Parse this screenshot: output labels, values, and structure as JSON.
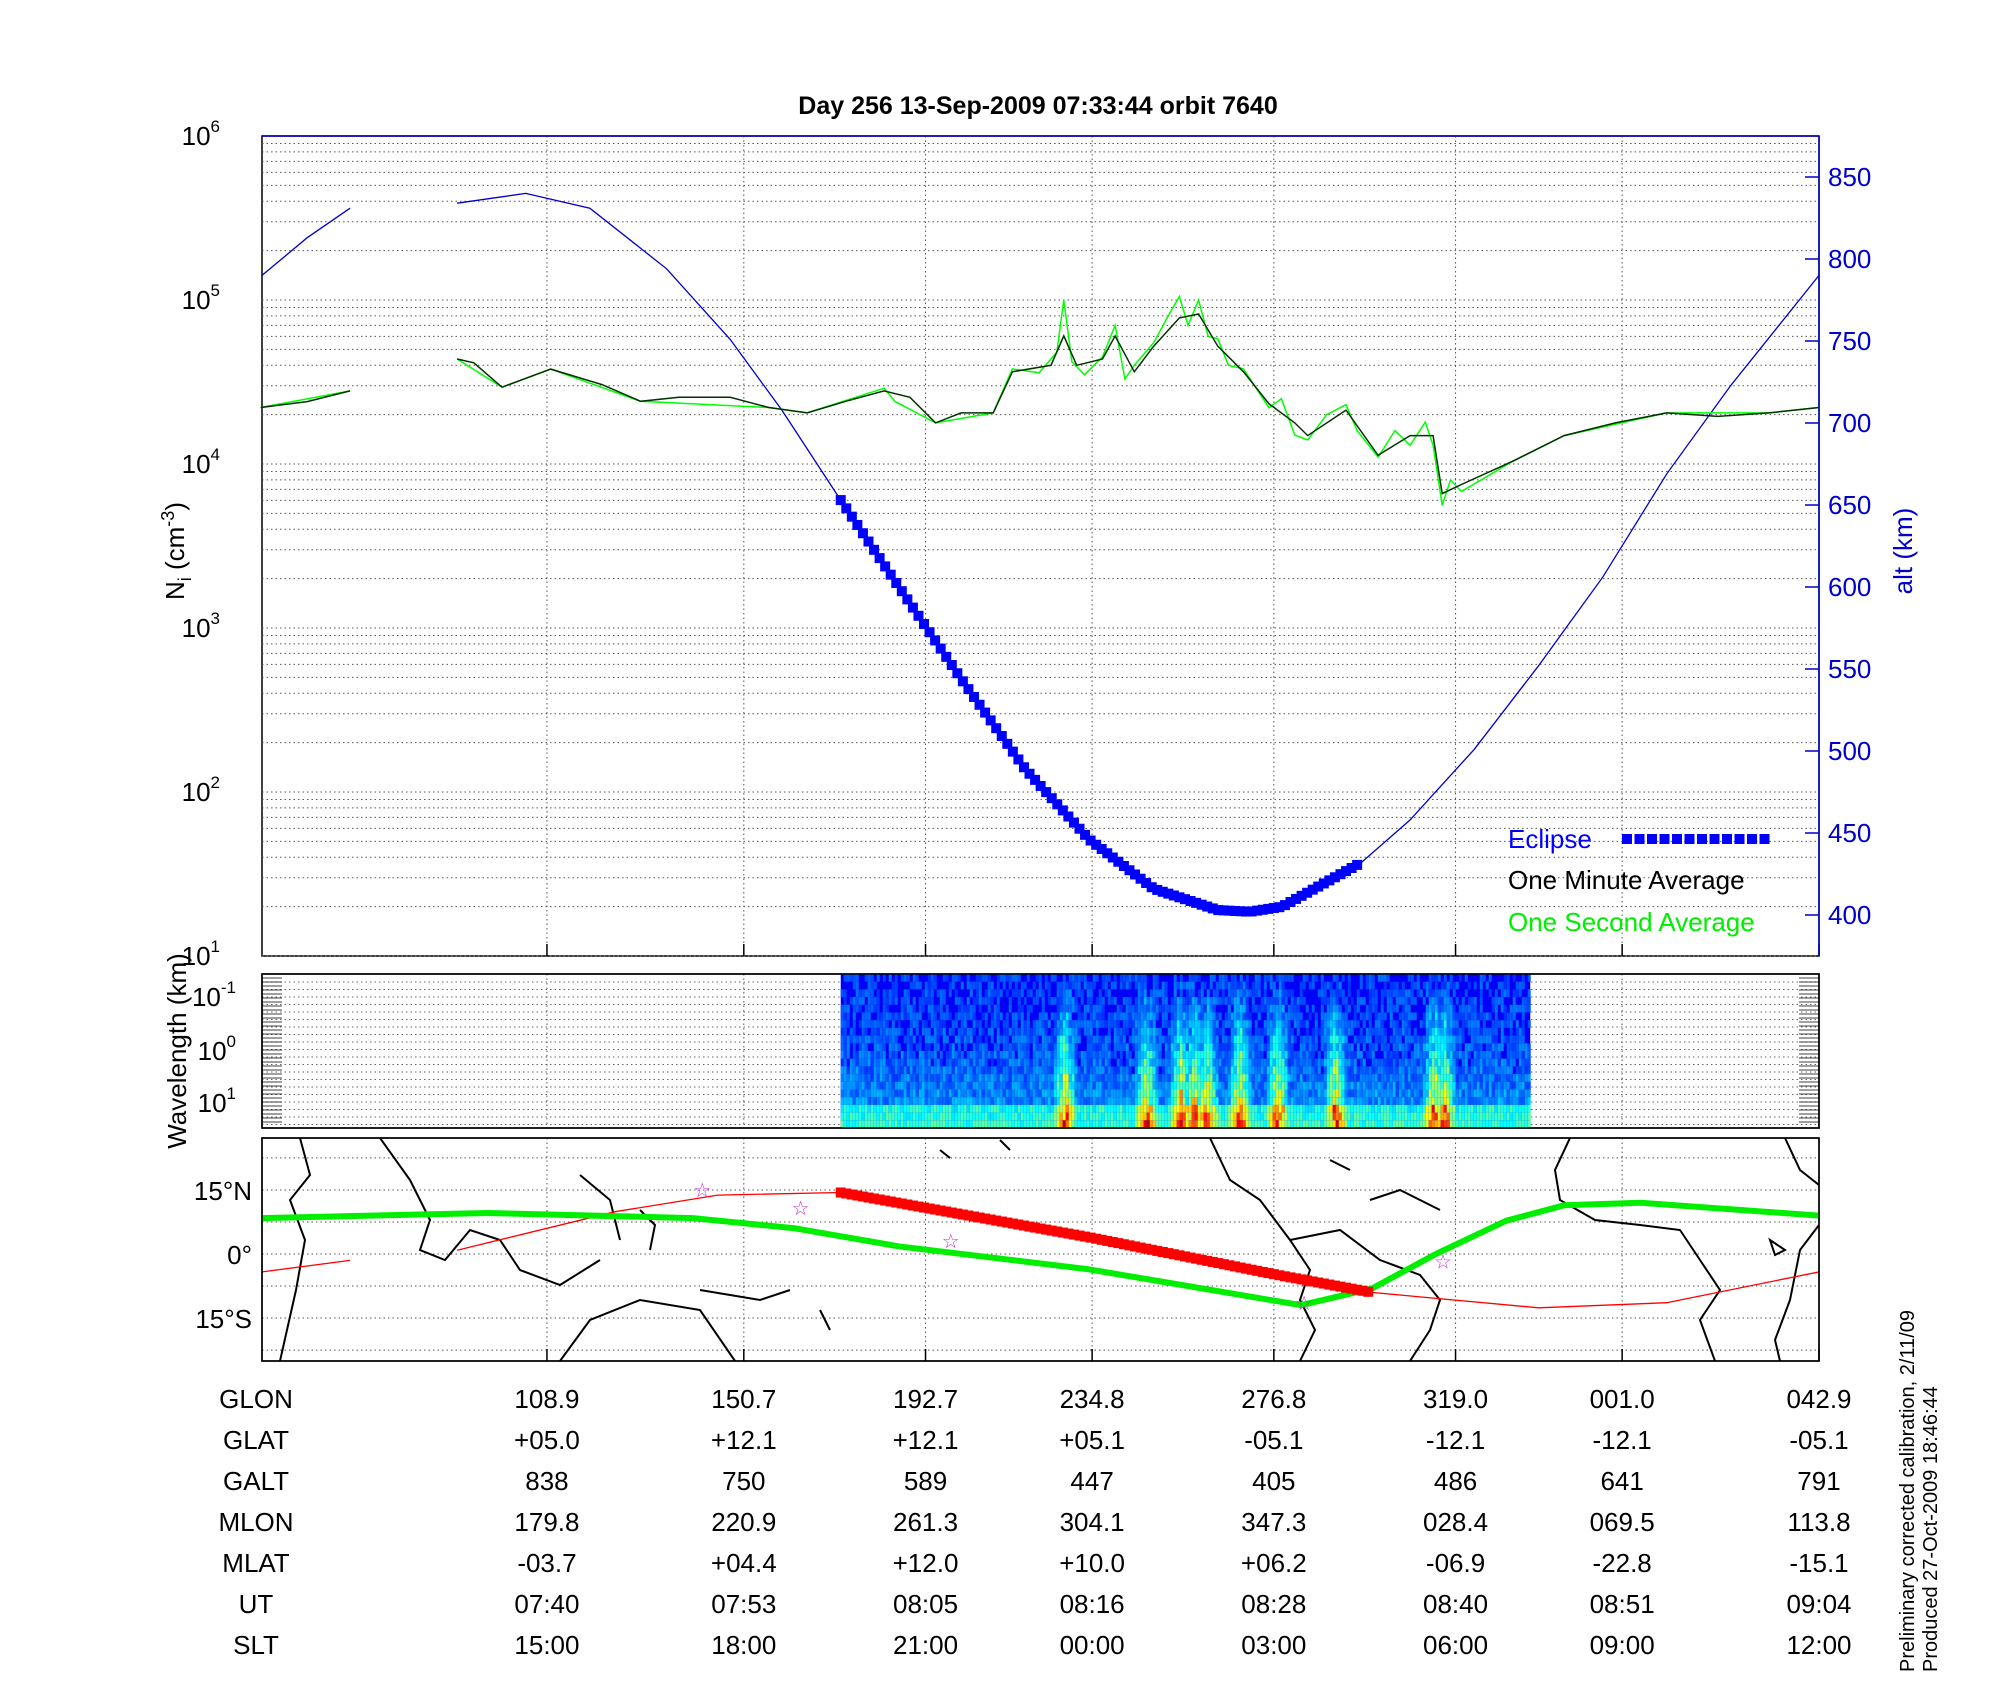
{
  "title": "Day 256  13-Sep-2009 07:33:44   orbit 7640",
  "footer": {
    "line1": "Preliminary corrected calibration, 2/11/09",
    "line2": "Produced 27-Oct-2009 18:46:44"
  },
  "colors": {
    "altitude": "#0000cc",
    "eclipse": "#0000ff",
    "minute": "#003300",
    "second": "#00ff00",
    "track": "#ff0000",
    "ground_track": "#00ee00",
    "star": "#cc33cc"
  },
  "chart_data": [
    {
      "type": "line",
      "xlim": [
        "07:21:11",
        "09:04:00"
      ],
      "ylabel": "Ni (cm-3)",
      "ylabel_main": "N",
      "ylabel_sub": "i",
      "ylabel_rest": " (cm",
      "ylabel_sup": "-3",
      "ylabel_end": ")",
      "y_scale": "log",
      "ylim": [
        10,
        1000000
      ],
      "y_ticks": [
        {
          "base": "10",
          "exp": "1"
        },
        {
          "base": "10",
          "exp": "2"
        },
        {
          "base": "10",
          "exp": "3"
        },
        {
          "base": "10",
          "exp": "4"
        },
        {
          "base": "10",
          "exp": "5"
        },
        {
          "base": "10",
          "exp": "6"
        }
      ],
      "y2label": "alt (km)",
      "y2lim": [
        375,
        875
      ],
      "y2_ticks": [
        "400",
        "450",
        "500",
        "550",
        "600",
        "650",
        "700",
        "750",
        "800",
        "850"
      ],
      "grid": true,
      "legend": {
        "placement": "bottom-right",
        "eclipse": "Eclipse",
        "minute": "One Minute Average",
        "second": "One Second Average"
      },
      "series": [
        {
          "name": "One Minute Average",
          "axis": "left",
          "points": [
            [
              "07:21:06",
              22100
            ],
            [
              "07:24:10",
              24000
            ],
            [
              "07:27:00",
              27900
            ],
            null,
            [
              "07:34:04",
              43700
            ],
            [
              "07:35:10",
              41400
            ],
            [
              "07:37:02",
              29400
            ],
            [
              "07:40:15",
              37900
            ],
            [
              "07:43:38",
              30500
            ],
            [
              "07:46:11",
              24100
            ],
            [
              "07:48:43",
              25500
            ],
            [
              "07:52:06",
              25500
            ],
            [
              "07:54:39",
              22100
            ],
            [
              "07:57:11",
              20500
            ],
            [
              "07:59:44",
              24100
            ],
            [
              "08:02:16",
              27900
            ],
            [
              "08:03:58",
              25500
            ],
            [
              "08:05:40",
              17800
            ],
            [
              "08:07:21",
              20500
            ],
            [
              "08:09:28",
              20500
            ],
            [
              "08:10:44",
              36500
            ],
            [
              "08:13:17",
              40000
            ],
            [
              "08:14:08",
              60400
            ],
            [
              "08:14:59",
              40000
            ],
            [
              "08:16:41",
              43700
            ],
            [
              "08:17:31",
              60400
            ],
            [
              "08:18:47",
              36500
            ],
            [
              "08:20:04",
              52300
            ],
            [
              "08:21:46",
              77800
            ],
            [
              "08:23:02",
              82100
            ],
            [
              "08:24:18",
              52300
            ],
            [
              "08:26:00",
              36500
            ],
            [
              "08:27:41",
              23300
            ],
            [
              "08:29:23",
              17800
            ],
            [
              "08:30:14",
              14900
            ],
            [
              "08:32:46",
              21300
            ],
            [
              "08:34:53",
              11300
            ],
            [
              "08:37:00",
              14900
            ],
            [
              "08:38:31",
              14900
            ],
            [
              "08:39:07",
              6600
            ],
            [
              "08:40:23",
              7500
            ],
            [
              "08:43:47",
              10400
            ],
            [
              "08:47:10",
              14900
            ],
            [
              "08:50:33",
              17800
            ],
            [
              "08:53:56",
              20500
            ],
            [
              "08:57:19",
              19500
            ],
            [
              "09:00:42",
              20500
            ],
            [
              "09:04:00",
              22100
            ]
          ]
        },
        {
          "name": "One Second Average",
          "axis": "left",
          "points": [
            [
              "07:21:06",
              22100
            ],
            [
              "07:27:00",
              27900
            ],
            null,
            [
              "07:34:04",
              43700
            ],
            [
              "07:37:02",
              29400
            ],
            [
              "07:40:15",
              37900
            ],
            [
              "07:46:11",
              24100
            ],
            [
              "07:54:39",
              22100
            ],
            [
              "07:57:11",
              20500
            ],
            [
              "08:02:16",
              29000
            ],
            [
              "08:03:00",
              24000
            ],
            [
              "08:05:40",
              17800
            ],
            [
              "08:09:28",
              20500
            ],
            [
              "08:10:44",
              38000
            ],
            [
              "08:12:30",
              36000
            ],
            [
              "08:13:40",
              48000
            ],
            [
              "08:14:08",
              100000
            ],
            [
              "08:14:40",
              42000
            ],
            [
              "08:15:30",
              35000
            ],
            [
              "08:16:41",
              45000
            ],
            [
              "08:17:31",
              70000
            ],
            [
              "08:18:10",
              33000
            ],
            [
              "08:18:47",
              40000
            ],
            [
              "08:20:04",
              55000
            ],
            [
              "08:21:20",
              90000
            ],
            [
              "08:21:46",
              105000
            ],
            [
              "08:22:20",
              70000
            ],
            [
              "08:23:02",
              100000
            ],
            [
              "08:23:40",
              60000
            ],
            [
              "08:24:18",
              58000
            ],
            [
              "08:25:00",
              40000
            ],
            [
              "08:26:00",
              38000
            ],
            [
              "08:27:41",
              22000
            ],
            [
              "08:28:30",
              25000
            ],
            [
              "08:29:23",
              15000
            ],
            [
              "08:30:14",
              14000
            ],
            [
              "08:31:30",
              20000
            ],
            [
              "08:32:46",
              23000
            ],
            [
              "08:33:30",
              16000
            ],
            [
              "08:34:53",
              11000
            ],
            [
              "08:36:00",
              16000
            ],
            [
              "08:37:00",
              13000
            ],
            [
              "08:38:00",
              18000
            ],
            [
              "08:38:31",
              13000
            ],
            [
              "08:39:07",
              5600
            ],
            [
              "08:39:40",
              8000
            ],
            [
              "08:40:23",
              6800
            ],
            [
              "08:43:47",
              10400
            ],
            [
              "08:47:10",
              14900
            ],
            [
              "08:53:56",
              20500
            ],
            [
              "09:00:42",
              20500
            ],
            [
              "09:04:00",
              22100
            ]
          ]
        },
        {
          "name": "alt (km)",
          "axis": "right",
          "points": [
            [
              "07:21:11",
              790
            ],
            [
              "07:24:10",
              813
            ],
            [
              "07:27:00",
              831
            ],
            null,
            [
              "07:34:04",
              834
            ],
            [
              "07:38:36",
              840
            ],
            [
              "07:42:50",
              831
            ],
            [
              "07:47:54",
              794
            ],
            [
              "07:52:06",
              751
            ],
            [
              "07:55:30",
              708
            ],
            [
              "07:59:24",
              653
            ],
            [
              "08:03:06",
              602
            ],
            [
              "08:07:21",
              544
            ],
            [
              "08:11:35",
              489
            ],
            [
              "08:15:49",
              446
            ],
            [
              "08:20:04",
              416
            ],
            [
              "08:24:18",
              403
            ],
            [
              "08:26:25",
              402
            ],
            [
              "08:28:32",
              405
            ],
            [
              "08:33:47",
              432
            ],
            [
              "08:37:00",
              458
            ],
            [
              "08:41:14",
              501
            ],
            [
              "08:45:29",
              552
            ],
            [
              "08:49:43",
              606
            ],
            [
              "08:53:57",
              669
            ],
            [
              "08:58:11",
              723
            ],
            [
              "09:04:00",
              790
            ]
          ]
        }
      ],
      "eclipse": {
        "start": "07:59:24",
        "end": "08:33:50"
      }
    },
    {
      "type": "heatmap",
      "ylabel": "Wavelength (km)",
      "y_scale": "log",
      "y_ticks": [
        {
          "base": "10",
          "exp": "-1"
        },
        {
          "base": "10",
          "exp": "0"
        },
        {
          "base": "10",
          "exp": "1"
        }
      ],
      "data_span": [
        "07:59:24",
        "08:44:56"
      ],
      "colormap": "jet",
      "active_times": [
        "08:14:08",
        "08:19:30",
        "08:21:46",
        "08:22:40",
        "08:23:30",
        "08:25:40",
        "08:28:10",
        "08:32:00",
        "08:38:31",
        "08:39:10"
      ]
    },
    {
      "type": "map",
      "lat_ticks": [
        "15°N",
        "0°",
        "15°S"
      ],
      "satellite_track": [
        [
          "07:21:11",
          -4.2
        ],
        [
          "07:27:00",
          -1.5
        ],
        null,
        [
          "07:34:04",
          0.9
        ],
        [
          "07:44:30",
          9.9
        ],
        [
          "07:51:17",
          13.8
        ],
        [
          "07:59:24",
          14.4
        ],
        [
          "08:15:49",
          3.9
        ],
        [
          "08:28:32",
          -5.1
        ],
        [
          "08:34:28",
          -9.0
        ],
        [
          "08:45:29",
          -12.6
        ],
        [
          "08:53:57",
          -11.4
        ],
        [
          "09:04:00",
          -4.2
        ]
      ],
      "ground_track": [
        [
          "07:21:11",
          8.4
        ],
        [
          "07:36:05",
          9.6
        ],
        [
          "07:49:38",
          8.4
        ],
        [
          "07:56:25",
          6.0
        ],
        [
          "08:03:12",
          1.8
        ],
        [
          "08:15:49",
          -3.6
        ],
        [
          "08:29:48",
          -12.0
        ],
        [
          "08:34:28",
          -8.1
        ],
        [
          "08:38:42",
          0.0
        ],
        [
          "08:43:21",
          7.8
        ],
        [
          "08:47:10",
          11.4
        ],
        [
          "08:52:15",
          12.0
        ],
        [
          "09:04:00",
          9.0
        ]
      ],
      "eclipse": {
        "start": "07:59:24",
        "end": "08:34:28"
      },
      "stars": [
        [
          "07:50:15",
          15.0
        ],
        [
          "07:56:45",
          10.8
        ],
        [
          "08:06:40",
          3.0
        ],
        [
          "08:30:00",
          -11.5
        ],
        [
          "08:39:10",
          -1.8
        ]
      ]
    }
  ],
  "table": {
    "rows": [
      {
        "label": "GLON",
        "values": [
          "108.9",
          "150.7",
          "192.7",
          "234.8",
          "276.8",
          "319.0",
          "001.0",
          "042.9"
        ]
      },
      {
        "label": "GLAT",
        "values": [
          "+05.0",
          "+12.1",
          "+12.1",
          "+05.1",
          "-05.1",
          "-12.1",
          "-12.1",
          "-05.1"
        ]
      },
      {
        "label": "GALT",
        "values": [
          "838",
          "750",
          "589",
          "447",
          "405",
          "486",
          "641",
          "791"
        ]
      },
      {
        "label": "MLON",
        "values": [
          "179.8",
          "220.9",
          "261.3",
          "304.1",
          "347.3",
          "028.4",
          "069.5",
          "113.8"
        ]
      },
      {
        "label": "MLAT",
        "values": [
          "-03.7",
          "+04.4",
          "+12.0",
          "+10.0",
          "+06.2",
          "-06.9",
          "-22.8",
          "-15.1"
        ]
      },
      {
        "label": "UT",
        "values": [
          "07:40",
          "07:53",
          "08:05",
          "08:16",
          "08:28",
          "08:40",
          "08:51",
          "09:04"
        ]
      },
      {
        "label": "SLT",
        "values": [
          "15:00",
          "18:00",
          "21:00",
          "00:00",
          "03:00",
          "06:00",
          "09:00",
          "12:00"
        ]
      }
    ]
  }
}
